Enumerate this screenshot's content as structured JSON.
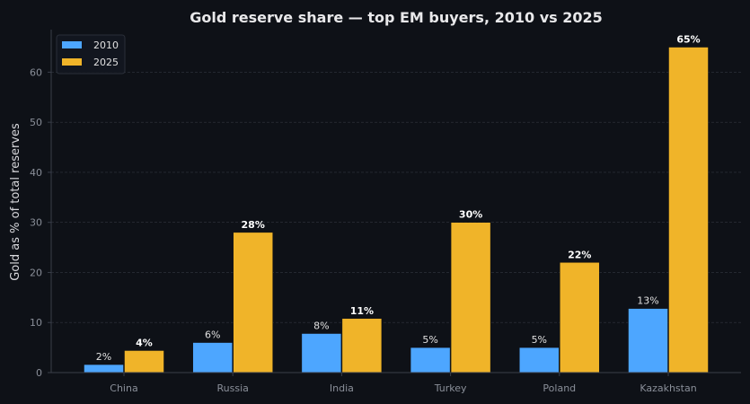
{
  "chart_data": {
    "type": "bar",
    "title": "Gold reserve share — top EM buyers, 2010 vs 2025",
    "xlabel": "",
    "ylabel": "Gold as % of total reserves",
    "categories": [
      "China",
      "Russia",
      "India",
      "Turkey",
      "Poland",
      "Kazakhstan"
    ],
    "series": [
      {
        "name": "2010",
        "values": [
          1.6,
          6,
          7.8,
          5,
          5,
          12.8
        ],
        "labels": [
          "2%",
          "6%",
          "8%",
          "5%",
          "5%",
          "13%"
        ],
        "color": "#4da6ff"
      },
      {
        "name": "2025",
        "values": [
          4.4,
          28,
          10.8,
          30,
          22,
          65
        ],
        "labels": [
          "4%",
          "28%",
          "11%",
          "30%",
          "22%",
          "65%"
        ],
        "color": "#f0b429"
      }
    ],
    "ylim": [
      0,
      68.5
    ],
    "yticks": [
      0,
      10,
      20,
      30,
      40,
      50,
      60
    ],
    "legend_position": "top-left",
    "grid": true
  },
  "colors": {
    "background": "#0e1117",
    "axis": "#3a3f4a",
    "grid": "#3a3f4a",
    "tick_text": "#8a8f99",
    "title_text": "#e8e8ea"
  }
}
